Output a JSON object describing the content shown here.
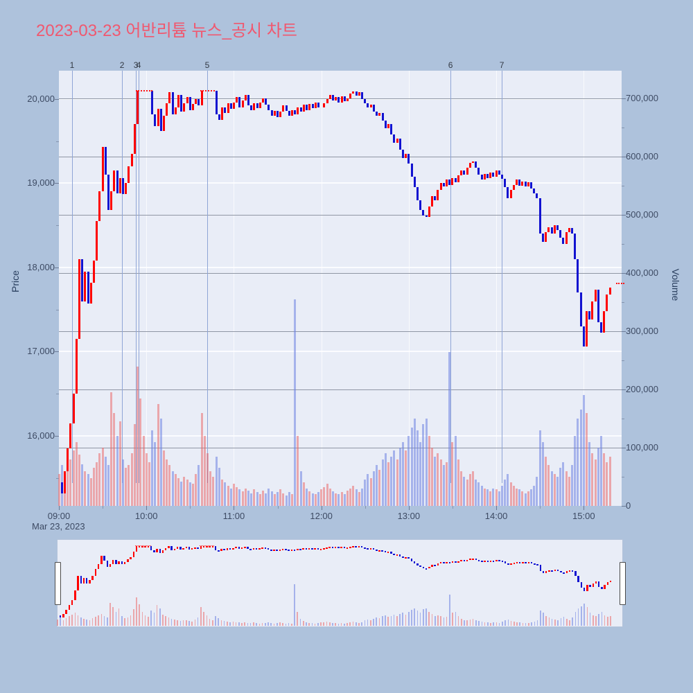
{
  "title": {
    "text": "2023-03-23 어반리튬 뉴스_공시 차트",
    "color": "#f0586f"
  },
  "axes": {
    "price_title": "Price",
    "volume_title": "Volume",
    "date_label": "Mar 23, 2023",
    "price_ticks": [
      {
        "v": 20000,
        "label": "20,000"
      },
      {
        "v": 19000,
        "label": "19,000"
      },
      {
        "v": 18000,
        "label": "18,000"
      },
      {
        "v": 17000,
        "label": "17,000"
      },
      {
        "v": 16000,
        "label": "16,000"
      }
    ],
    "volume_ticks": [
      {
        "v": 700000,
        "label": "700,000"
      },
      {
        "v": 600000,
        "label": "600,000"
      },
      {
        "v": 500000,
        "label": "500,000"
      },
      {
        "v": 400000,
        "label": "400,000"
      },
      {
        "v": 300000,
        "label": "300,000"
      },
      {
        "v": 200000,
        "label": "200,000"
      },
      {
        "v": 100000,
        "label": "100,000"
      },
      {
        "v": 0,
        "label": "0"
      }
    ],
    "time_ticks": [
      {
        "minute": 0,
        "label": "09:00"
      },
      {
        "minute": 60,
        "label": "10:00"
      },
      {
        "minute": 120,
        "label": "11:00"
      },
      {
        "minute": 180,
        "label": "12:00"
      },
      {
        "minute": 240,
        "label": "13:00"
      },
      {
        "minute": 300,
        "label": "14:00"
      },
      {
        "minute": 360,
        "label": "15:00"
      }
    ]
  },
  "colors": {
    "page_bg": "#aec2dc",
    "plot_bg": "#e9edf7",
    "candle_up": "#fe0000",
    "candle_down": "#1212d0",
    "volume_up": "rgba(235,95,95,0.5)",
    "volume_down": "rgba(110,130,225,0.55)",
    "event_line": "#8fa5d6",
    "grid_price": "#fbfcff",
    "grid_volume": "#8f96a4",
    "limit_dotted": "#ff1515"
  },
  "chart_data": {
    "type": "candlestick_with_volume",
    "date": "Mar 23, 2023",
    "x_step_minutes": 2,
    "x_axis_range_minutes": [
      0,
      386
    ],
    "price_ylim": [
      15170,
      20335
    ],
    "volume_ylim": [
      0,
      748000
    ],
    "upper_limit_price": 20100,
    "limit_hold_segments_min": [
      [
        53,
        64
      ],
      [
        97,
        107
      ]
    ],
    "last_price_marker": {
      "minutes": [
        382,
        388
      ],
      "price": 17810
    },
    "events": [
      {
        "label": "1",
        "minute": 9
      },
      {
        "label": "2",
        "minute": 43.3
      },
      {
        "label": "3",
        "minute": 52.8
      },
      {
        "label": "4",
        "minute": 54.7
      },
      {
        "label": "5",
        "minute": 101.7
      },
      {
        "label": "6",
        "minute": 268.6
      },
      {
        "label": "7",
        "minute": 303.8
      }
    ],
    "close": [
      15450,
      15320,
      15580,
      15850,
      16150,
      16500,
      17150,
      18100,
      17600,
      17950,
      17570,
      17820,
      18080,
      18550,
      18900,
      19430,
      19100,
      18680,
      18900,
      19150,
      18880,
      19060,
      18870,
      19000,
      19200,
      19350,
      19700,
      20100,
      20100,
      20100,
      20100,
      20100,
      19820,
      19680,
      19880,
      19620,
      19800,
      19950,
      20080,
      19820,
      19900,
      20050,
      19850,
      19950,
      20020,
      19870,
      19940,
      20000,
      19920,
      20100,
      20100,
      20100,
      20100,
      20100,
      19820,
      19750,
      19900,
      19830,
      19950,
      19880,
      19960,
      20020,
      19900,
      19980,
      20050,
      19920,
      19870,
      19950,
      19890,
      19960,
      20010,
      19930,
      19870,
      19800,
      19860,
      19780,
      19850,
      19920,
      19860,
      19800,
      19870,
      19820,
      19900,
      19850,
      19930,
      19870,
      19940,
      19890,
      19960,
      19900,
      19900,
      19950,
      20000,
      20050,
      19980,
      20020,
      19960,
      20030,
      19970,
      20010,
      20060,
      20090,
      20040,
      20080,
      20000,
      19950,
      19900,
      19930,
      19850,
      19800,
      19830,
      19740,
      19650,
      19700,
      19580,
      19480,
      19530,
      19400,
      19300,
      19350,
      19230,
      19080,
      18950,
      18800,
      18680,
      18620,
      18600,
      18720,
      18850,
      18800,
      18920,
      19000,
      18960,
      19040,
      18980,
      19060,
      19010,
      19090,
      19150,
      19100,
      19180,
      19240,
      19260,
      19180,
      19100,
      19040,
      19110,
      19060,
      19130,
      19080,
      19150,
      19100,
      19050,
      18950,
      18820,
      18920,
      18980,
      19040,
      18970,
      19020,
      18960,
      19010,
      18940,
      18880,
      18820,
      18400,
      18300,
      18420,
      18480,
      18400,
      18500,
      18440,
      18350,
      18280,
      18420,
      18470,
      18400,
      18100,
      17700,
      17300,
      17060,
      17480,
      17380,
      17600,
      17740,
      17350,
      17230,
      17480,
      17680,
      17760
    ],
    "volume_thousands": [
      55,
      70,
      48,
      62,
      80,
      95,
      110,
      88,
      72,
      60,
      55,
      48,
      65,
      75,
      90,
      100,
      85,
      70,
      195,
      160,
      120,
      145,
      80,
      65,
      70,
      90,
      140,
      240,
      185,
      120,
      90,
      75,
      130,
      110,
      175,
      150,
      95,
      80,
      70,
      60,
      55,
      48,
      42,
      50,
      45,
      40,
      38,
      55,
      70,
      160,
      120,
      90,
      60,
      50,
      85,
      65,
      45,
      40,
      35,
      30,
      38,
      32,
      28,
      25,
      30,
      26,
      22,
      28,
      24,
      20,
      26,
      22,
      30,
      25,
      20,
      24,
      28,
      22,
      18,
      24,
      20,
      355,
      120,
      60,
      40,
      30,
      25,
      22,
      20,
      24,
      28,
      32,
      38,
      30,
      25,
      22,
      20,
      24,
      20,
      26,
      30,
      34,
      28,
      24,
      30,
      45,
      55,
      48,
      60,
      70,
      62,
      80,
      90,
      75,
      85,
      95,
      80,
      100,
      110,
      95,
      120,
      135,
      150,
      130,
      110,
      140,
      150,
      120,
      100,
      85,
      90,
      80,
      70,
      75,
      265,
      110,
      120,
      80,
      60,
      50,
      45,
      55,
      60,
      45,
      40,
      35,
      30,
      28,
      25,
      30,
      28,
      25,
      35,
      45,
      55,
      40,
      35,
      30,
      28,
      25,
      22,
      25,
      28,
      35,
      50,
      130,
      110,
      85,
      70,
      60,
      55,
      50,
      65,
      75,
      60,
      50,
      70,
      120,
      150,
      165,
      190,
      160,
      110,
      90,
      80,
      100,
      120,
      90,
      75,
      85
    ]
  }
}
